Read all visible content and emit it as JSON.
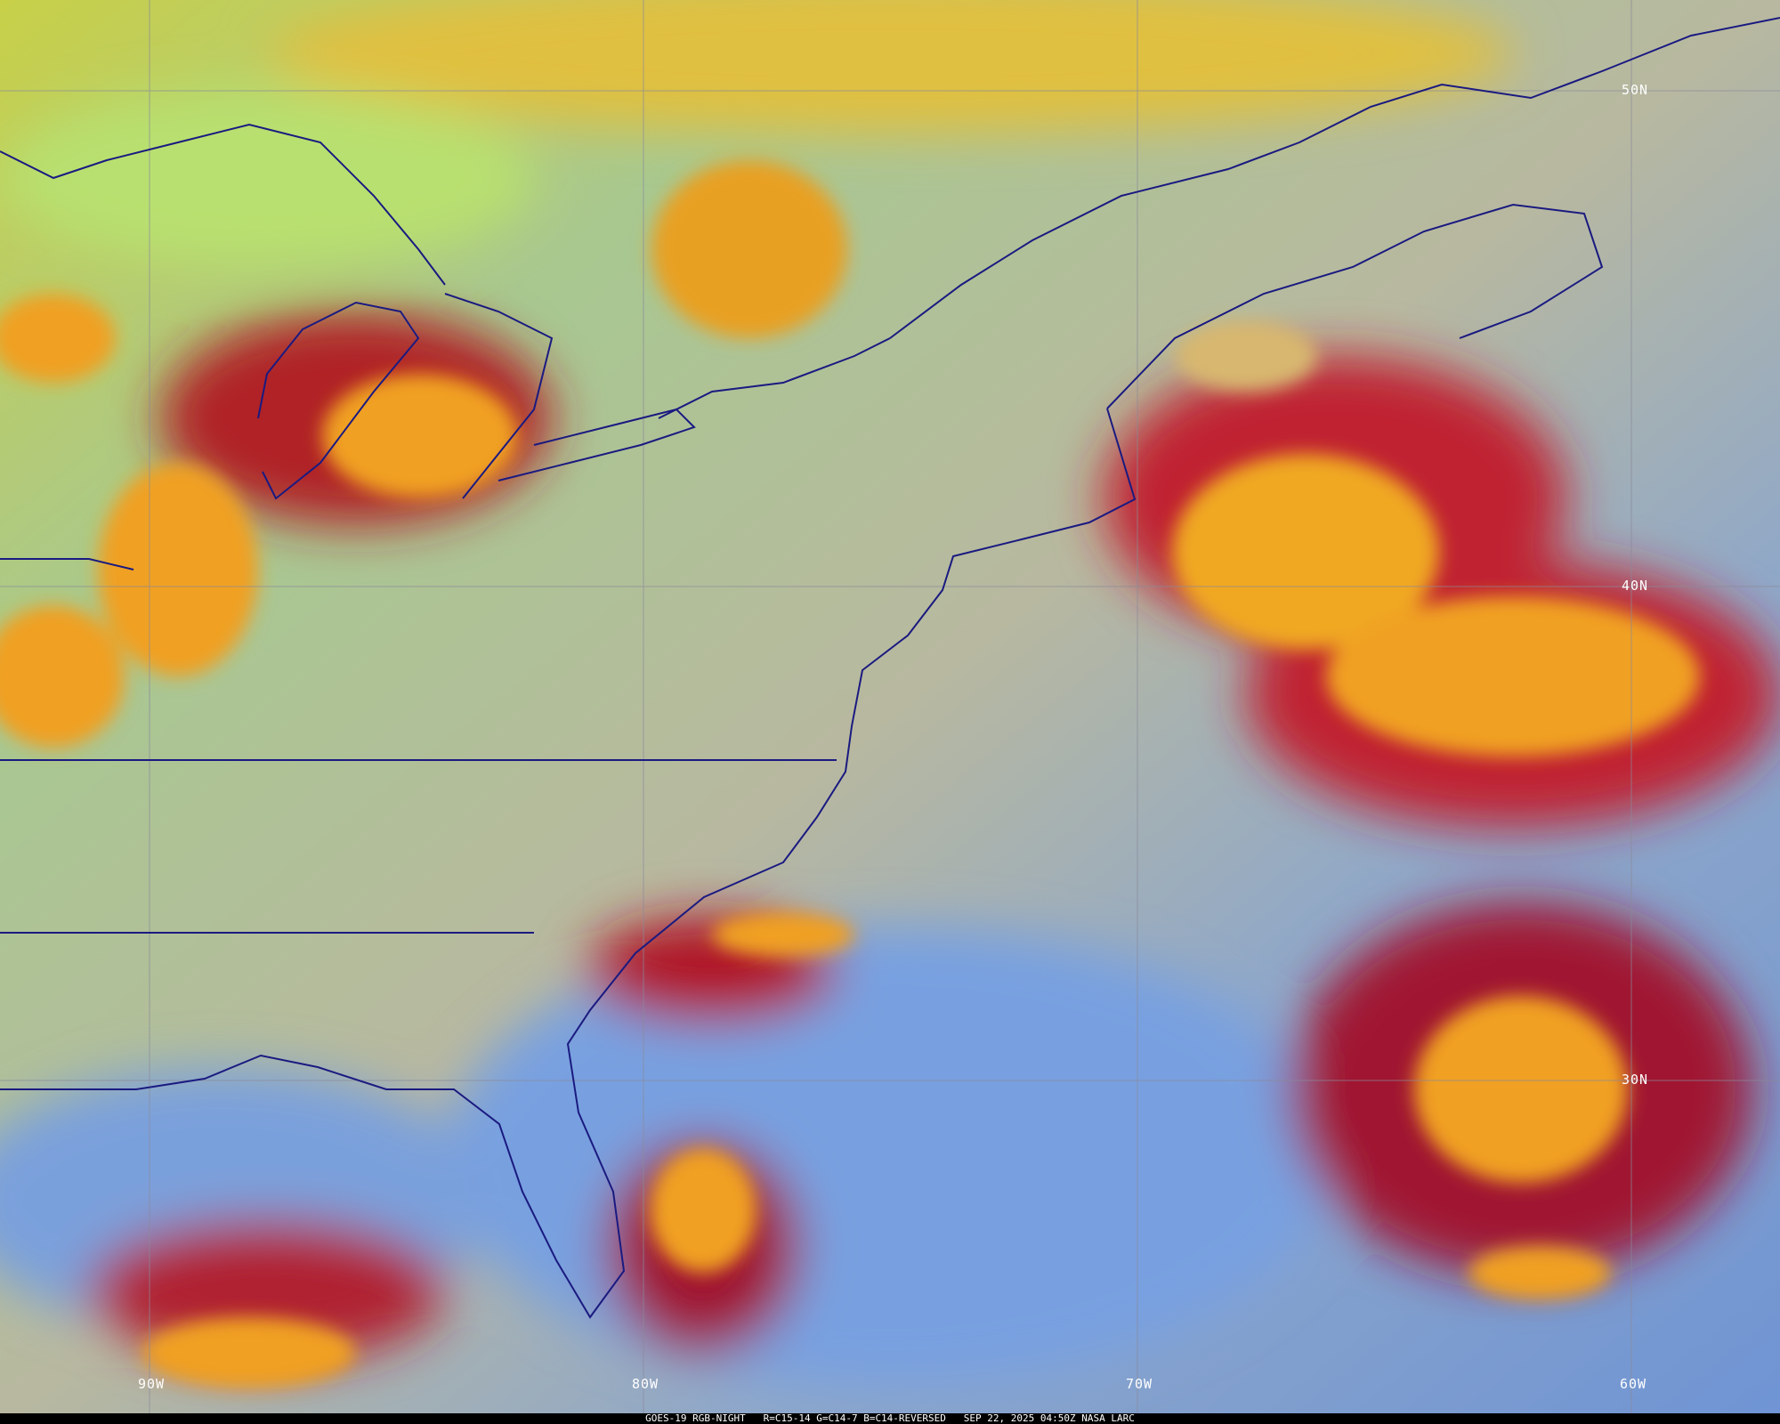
{
  "caption": {
    "satellite": "GOES-19 RGB-NIGHT",
    "channels": "R=C15-14 G=C14-7 B=C14-REVERSED",
    "timestamp": "SEP 22, 2025 04:50Z NASA LARC"
  },
  "grid_labels": {
    "lat": [
      "50N",
      "40N",
      "30N"
    ],
    "lon": [
      "90W",
      "80W",
      "70W",
      "60W"
    ]
  },
  "colors": {
    "ocean_clear": "#7aa0d8",
    "land_clear": "#b9b59a",
    "high_cloud": "#f0a020",
    "cloud_edge": "#b01828",
    "low_cloud": "#d8d040",
    "boundaries": "#1a1a80",
    "grid": "#8a8a9a"
  }
}
